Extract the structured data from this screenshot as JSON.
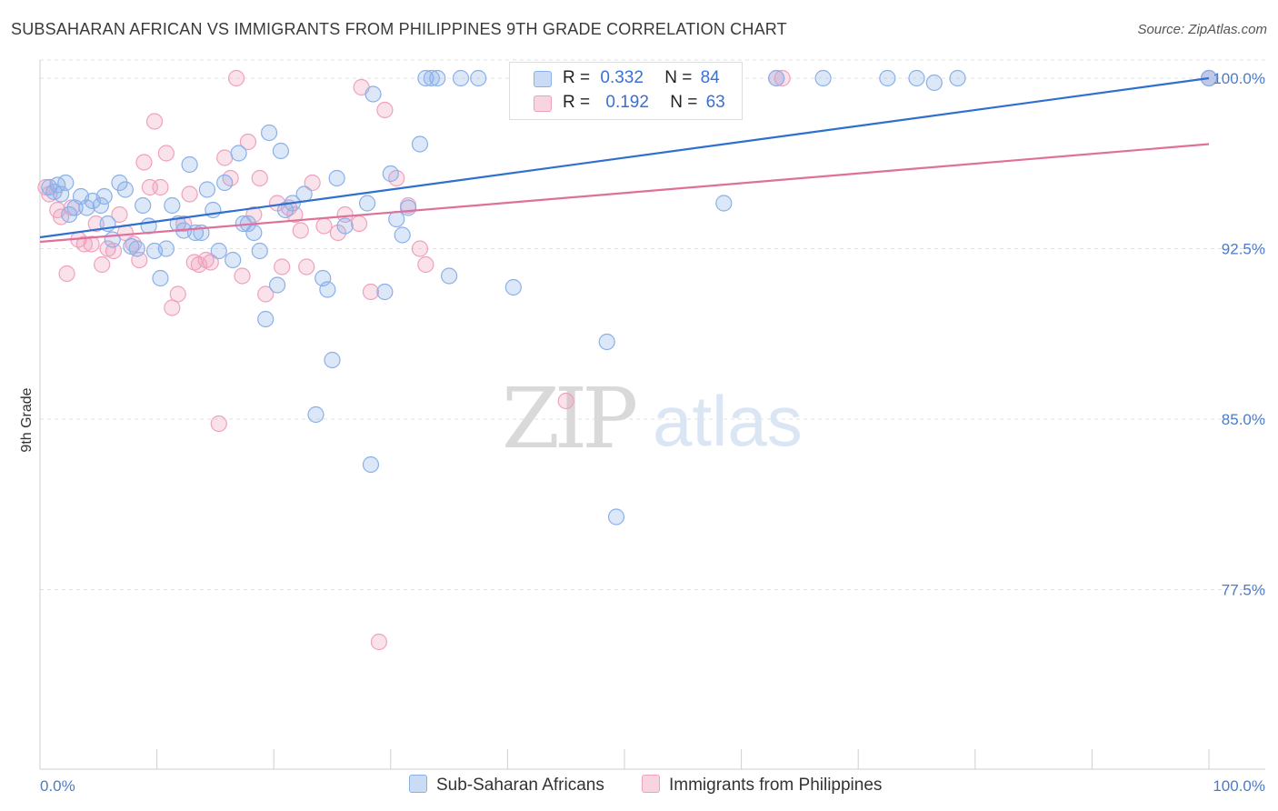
{
  "title": "SUBSAHARAN AFRICAN VS IMMIGRANTS FROM PHILIPPINES 9TH GRADE CORRELATION CHART",
  "source": "Source: ZipAtlas.com",
  "watermark": {
    "zip": "ZIP",
    "atlas": "atlas"
  },
  "colors": {
    "blue": "#8ab0e8",
    "blue_fill": "rgba(138,176,232,0.30)",
    "blue_line": "#2f6fcf",
    "pink": "#f0a0bc",
    "pink_fill": "rgba(240,160,188,0.30)",
    "pink_line": "#e0709a",
    "tick": "#4a7cc9"
  },
  "legend": {
    "rows": [
      {
        "r_label": "R =",
        "r_value": "0.332",
        "n_label": "N =",
        "n_value": "84"
      },
      {
        "r_label": "R =",
        "r_value": "0.192",
        "n_label": "N =",
        "n_value": "63"
      }
    ]
  },
  "bottom_legend": [
    "Sub-Saharan Africans",
    "Immigrants from Philippines"
  ],
  "chart_data": {
    "type": "scatter",
    "xlabel": "",
    "ylabel": "9th Grade",
    "xlim": [
      0,
      100
    ],
    "ylim": [
      69.6,
      100.8
    ],
    "x_tick_labels": [
      "0.0%",
      "100.0%"
    ],
    "y_ticks": [
      77.5,
      85.0,
      92.5,
      100.0
    ],
    "y_tick_labels": [
      "77.5%",
      "85.0%",
      "92.5%",
      "100.0%"
    ],
    "grid": true,
    "legend_position": "top-center",
    "series": [
      {
        "name": "Sub-Saharan Africans",
        "trend": [
          [
            0,
            93.0
          ],
          [
            100,
            100.0
          ]
        ],
        "points": [
          [
            0.8,
            95.2
          ],
          [
            1.2,
            95.0
          ],
          [
            1.5,
            95.3
          ],
          [
            1.8,
            94.9
          ],
          [
            2.2,
            95.4
          ],
          [
            2.5,
            94.0
          ],
          [
            3.0,
            94.3
          ],
          [
            3.5,
            94.8
          ],
          [
            4.0,
            94.3
          ],
          [
            4.5,
            94.6
          ],
          [
            5.2,
            94.4
          ],
          [
            5.5,
            94.8
          ],
          [
            5.8,
            93.6
          ],
          [
            6.2,
            92.9
          ],
          [
            6.8,
            95.4
          ],
          [
            7.3,
            95.1
          ],
          [
            7.8,
            92.6
          ],
          [
            8.3,
            92.5
          ],
          [
            8.8,
            94.4
          ],
          [
            9.3,
            93.5
          ],
          [
            9.8,
            92.4
          ],
          [
            10.3,
            91.2
          ],
          [
            10.8,
            92.5
          ],
          [
            11.3,
            94.4
          ],
          [
            11.8,
            93.6
          ],
          [
            12.3,
            93.3
          ],
          [
            12.8,
            96.2
          ],
          [
            13.3,
            93.2
          ],
          [
            13.8,
            93.2
          ],
          [
            14.3,
            95.1
          ],
          [
            14.8,
            94.2
          ],
          [
            15.3,
            92.4
          ],
          [
            15.8,
            95.4
          ],
          [
            16.5,
            92.0
          ],
          [
            17.0,
            96.7
          ],
          [
            17.4,
            93.6
          ],
          [
            17.8,
            93.6
          ],
          [
            18.3,
            93.2
          ],
          [
            18.8,
            92.4
          ],
          [
            19.3,
            89.4
          ],
          [
            19.6,
            97.6
          ],
          [
            20.3,
            90.9
          ],
          [
            20.6,
            96.8
          ],
          [
            21.0,
            94.2
          ],
          [
            21.6,
            94.5
          ],
          [
            22.6,
            94.9
          ],
          [
            23.6,
            85.2
          ],
          [
            24.2,
            91.2
          ],
          [
            24.6,
            90.7
          ],
          [
            25.0,
            87.6
          ],
          [
            25.4,
            95.6
          ],
          [
            26.1,
            93.5
          ],
          [
            28.0,
            94.5
          ],
          [
            28.3,
            83.0
          ],
          [
            28.5,
            99.3
          ],
          [
            29.5,
            90.6
          ],
          [
            30.0,
            95.8
          ],
          [
            30.5,
            93.8
          ],
          [
            31.0,
            93.1
          ],
          [
            31.5,
            94.3
          ],
          [
            32.5,
            97.1
          ],
          [
            33.0,
            100.0
          ],
          [
            33.5,
            100.0
          ],
          [
            34.0,
            100.0
          ],
          [
            35.0,
            91.3
          ],
          [
            36.0,
            100.0
          ],
          [
            37.5,
            100.0
          ],
          [
            40.5,
            90.8
          ],
          [
            41.0,
            99.8
          ],
          [
            42.0,
            100.0
          ],
          [
            44.0,
            100.0
          ],
          [
            47.0,
            100.0
          ],
          [
            48.5,
            88.4
          ],
          [
            49.3,
            80.7
          ],
          [
            55.0,
            99.3
          ],
          [
            58.5,
            94.5
          ],
          [
            63.0,
            100.0
          ],
          [
            67.0,
            100.0
          ],
          [
            72.5,
            100.0
          ],
          [
            75.0,
            100.0
          ],
          [
            76.5,
            99.8
          ],
          [
            78.5,
            100.0
          ],
          [
            100.0,
            100.0
          ],
          [
            100.0,
            100.0
          ]
        ]
      },
      {
        "name": "Immigrants from Philippines",
        "trend": [
          [
            0,
            92.8
          ],
          [
            100,
            97.1
          ]
        ],
        "points": [
          [
            0.5,
            95.2
          ],
          [
            0.8,
            94.9
          ],
          [
            1.5,
            94.2
          ],
          [
            1.8,
            93.9
          ],
          [
            2.3,
            91.4
          ],
          [
            2.7,
            94.3
          ],
          [
            3.3,
            92.9
          ],
          [
            3.8,
            92.7
          ],
          [
            4.4,
            92.7
          ],
          [
            4.8,
            93.6
          ],
          [
            5.3,
            91.8
          ],
          [
            5.8,
            92.5
          ],
          [
            6.3,
            92.4
          ],
          [
            6.8,
            94.0
          ],
          [
            7.3,
            93.2
          ],
          [
            8.0,
            92.7
          ],
          [
            8.5,
            92.0
          ],
          [
            8.9,
            96.3
          ],
          [
            9.4,
            95.2
          ],
          [
            9.8,
            98.1
          ],
          [
            10.3,
            95.2
          ],
          [
            10.8,
            96.7
          ],
          [
            11.3,
            89.9
          ],
          [
            11.8,
            90.5
          ],
          [
            12.3,
            93.6
          ],
          [
            12.8,
            94.9
          ],
          [
            13.2,
            91.9
          ],
          [
            13.6,
            91.8
          ],
          [
            14.2,
            92.0
          ],
          [
            14.6,
            91.9
          ],
          [
            15.3,
            84.8
          ],
          [
            15.8,
            96.5
          ],
          [
            16.3,
            95.6
          ],
          [
            16.8,
            100.0
          ],
          [
            17.3,
            91.3
          ],
          [
            17.8,
            97.2
          ],
          [
            18.3,
            94.0
          ],
          [
            18.8,
            95.6
          ],
          [
            19.3,
            90.5
          ],
          [
            20.3,
            94.5
          ],
          [
            20.7,
            91.7
          ],
          [
            21.3,
            94.3
          ],
          [
            21.8,
            94.0
          ],
          [
            22.3,
            93.3
          ],
          [
            22.8,
            91.7
          ],
          [
            23.3,
            95.4
          ],
          [
            24.3,
            93.5
          ],
          [
            25.5,
            93.2
          ],
          [
            26.1,
            94.0
          ],
          [
            27.3,
            93.6
          ],
          [
            27.5,
            99.6
          ],
          [
            28.3,
            90.6
          ],
          [
            29.0,
            75.2
          ],
          [
            29.5,
            98.6
          ],
          [
            30.5,
            95.6
          ],
          [
            31.5,
            94.4
          ],
          [
            32.5,
            92.5
          ],
          [
            33.0,
            91.8
          ],
          [
            45.0,
            85.8
          ],
          [
            55.5,
            100.0
          ],
          [
            63.0,
            100.0
          ],
          [
            63.5,
            100.0
          ],
          [
            100.0,
            100.0
          ]
        ]
      }
    ]
  }
}
